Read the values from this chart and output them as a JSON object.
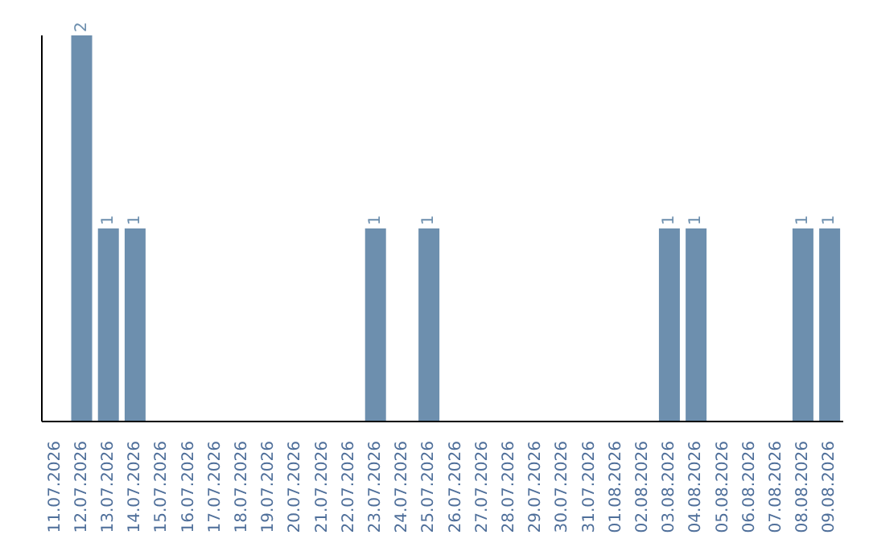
{
  "chart_data": {
    "type": "bar",
    "categories": [
      "11.07.2026",
      "12.07.2026",
      "13.07.2026",
      "14.07.2026",
      "15.07.2026",
      "16.07.2026",
      "17.07.2026",
      "18.07.2026",
      "19.07.2026",
      "20.07.2026",
      "21.07.2026",
      "22.07.2026",
      "23.07.2026",
      "24.07.2026",
      "25.07.2026",
      "26.07.2026",
      "27.07.2026",
      "28.07.2026",
      "29.07.2026",
      "30.07.2026",
      "31.07.2026",
      "01.08.2026",
      "02.08.2026",
      "03.08.2026",
      "04.08.2026",
      "05.08.2026",
      "06.08.2026",
      "07.08.2026",
      "08.08.2026",
      "09.08.2026"
    ],
    "values": [
      0,
      2,
      1,
      1,
      0,
      0,
      0,
      0,
      0,
      0,
      0,
      0,
      1,
      0,
      1,
      0,
      0,
      0,
      0,
      0,
      0,
      0,
      0,
      1,
      1,
      0,
      0,
      0,
      1,
      1
    ],
    "value_labels": [
      null,
      "2",
      "1",
      "1",
      null,
      null,
      null,
      null,
      null,
      null,
      null,
      null,
      "1",
      null,
      "1",
      null,
      null,
      null,
      null,
      null,
      null,
      null,
      null,
      "1",
      "1",
      null,
      null,
      null,
      "1",
      "1"
    ],
    "color": "#6d8fae",
    "tick_labels": "x"
  }
}
